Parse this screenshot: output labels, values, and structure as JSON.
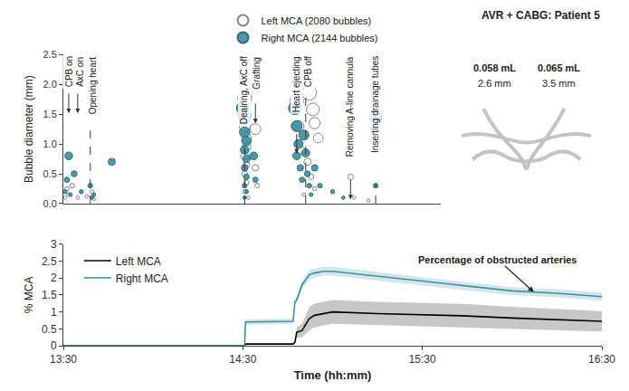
{
  "chart_data": [
    {
      "type": "scatter",
      "title": "AVR + CABG: Patient 5",
      "ylabel": "Bubble diameter (mm)",
      "xlim": [
        13.5,
        15.6
      ],
      "ylim": [
        0,
        2.5
      ],
      "yticks": [
        {
          "value": 0,
          "label": "0.0"
        },
        {
          "value": 0.5,
          "label": "0.5"
        },
        {
          "value": 1,
          "label": "1.0"
        },
        {
          "value": 1.5,
          "label": "1.5"
        },
        {
          "value": 2,
          "label": "2.0"
        },
        {
          "value": 2.5,
          "label": "2.5"
        }
      ],
      "tick_labels": "y",
      "grid": false,
      "legend": "top",
      "marker": "circle",
      "series": [
        {
          "name": "Left MCA (2080 bubbles)",
          "color": "#ffffff",
          "x": [
            13.51,
            13.52,
            13.53,
            13.55,
            13.58,
            13.63,
            13.66,
            13.67,
            14.51,
            14.51,
            14.51,
            14.52,
            14.52,
            14.51,
            14.52,
            14.51,
            14.52,
            14.51,
            14.53,
            14.57,
            14.57,
            14.58,
            14.8,
            14.81,
            14.82,
            14.83,
            14.85,
            14.87,
            14.89,
            14.9,
            14.92,
            14.86,
            14.88,
            14.9,
            14.84,
            15.1,
            15.12,
            15.2
          ],
          "values": [
            0.1,
            0.25,
            0.15,
            0.3,
            0.1,
            0.12,
            0.2,
            0.08,
            1.77,
            1.5,
            1.3,
            1.1,
            0.95,
            0.8,
            0.65,
            0.5,
            0.35,
            0.2,
            0.1,
            1.25,
            0.6,
            0.3,
            1.72,
            1.3,
            0.9,
            1.95,
            2.1,
            1.86,
            1.58,
            1.35,
            1.1,
            0.7,
            0.45,
            0.25,
            0.15,
            0.45,
            0.1,
            0.05
          ]
        },
        {
          "name": "Right MCA (2144 bubbles)",
          "color": "#3a8fa3",
          "x": [
            13.51,
            13.52,
            13.53,
            13.54,
            13.56,
            13.6,
            13.65,
            13.66,
            13.67,
            13.77,
            14.5,
            14.51,
            14.51,
            14.52,
            14.51,
            14.52,
            14.51,
            14.52,
            14.51,
            14.52,
            14.51,
            14.56,
            14.57,
            14.79,
            14.8,
            14.81,
            14.8,
            14.82,
            14.83,
            14.84,
            14.85,
            14.86,
            14.87,
            14.88,
            14.9,
            14.93,
            15.0,
            15.06,
            15.24,
            15.24
          ],
          "values": [
            0.2,
            0.4,
            0.8,
            0.15,
            0.5,
            0.2,
            0.3,
            0.1,
            0.15,
            0.7,
            1.6,
            1.45,
            1.2,
            1.05,
            0.9,
            0.75,
            0.6,
            0.45,
            0.3,
            0.2,
            0.1,
            0.8,
            0.4,
            1.6,
            1.3,
            1.0,
            0.8,
            0.6,
            0.4,
            1.15,
            0.85,
            0.5,
            0.3,
            0.15,
            0.6,
            0.3,
            0.2,
            0.1,
            1.45,
            0.3
          ]
        }
      ],
      "events": [
        {
          "x": 13.53,
          "label": "CPB on",
          "line_style": "arrow"
        },
        {
          "x": 13.58,
          "label": "AxC on",
          "line_style": "arrow"
        },
        {
          "x": 13.65,
          "label": "Opening heart",
          "line_style": "dashed"
        },
        {
          "x": 14.51,
          "label": "Deairing, AxC off",
          "line_style": "dashed"
        },
        {
          "x": 14.57,
          "label": "Grafting",
          "line_style": "arrow"
        },
        {
          "x": 14.8,
          "label": "Heart ejecting",
          "line_style": "arrow"
        },
        {
          "x": 14.85,
          "label": "CPB off",
          "line_style": "dashed"
        },
        {
          "x": 15.1,
          "label": "Removing A-line cannula",
          "line_style": "arrow"
        },
        {
          "x": 15.24,
          "label": "Inserting drainage tubes",
          "line_style": "dashed"
        }
      ],
      "inset_labels": [
        "0.058 mL",
        "2.6 mm",
        "0.065 mL",
        "3.5 mm"
      ]
    },
    {
      "type": "line",
      "xlabel": "Time (hh:mm)",
      "ylabel": "% MCA",
      "xlim": [
        13.5,
        16.5
      ],
      "xticks": [
        {
          "value": 13.5,
          "label": "13:30"
        },
        {
          "value": 14.5,
          "label": "14:30"
        },
        {
          "value": 15.5,
          "label": "15:30"
        },
        {
          "value": 16.5,
          "label": "16:30"
        }
      ],
      "ylim": [
        0,
        3
      ],
      "yticks": [
        0,
        0.5,
        1,
        1.5,
        2,
        2.5,
        3
      ],
      "grid": false,
      "legend": "upper left",
      "x": [
        13.5,
        14.51,
        14.515,
        14.78,
        14.79,
        14.8,
        14.83,
        14.87,
        14.9,
        14.95,
        15.0,
        15.25,
        15.5,
        15.75,
        16.0,
        16.25,
        16.5
      ],
      "series": [
        {
          "name": "Left MCA",
          "color": "#000000",
          "line_style": "solid",
          "values": [
            0,
            0,
            0.05,
            0.05,
            0.1,
            0.4,
            0.45,
            0.8,
            0.9,
            0.95,
            1.0,
            0.95,
            0.92,
            0.88,
            0.82,
            0.77,
            0.72
          ],
          "lower": [
            0,
            0,
            0.03,
            0.03,
            0.06,
            0.25,
            0.25,
            0.45,
            0.55,
            0.6,
            0.65,
            0.6,
            0.57,
            0.53,
            0.5,
            0.46,
            0.42
          ],
          "upper": [
            0,
            0,
            0.07,
            0.07,
            0.14,
            0.55,
            0.65,
            1.15,
            1.25,
            1.3,
            1.35,
            1.3,
            1.27,
            1.23,
            1.15,
            1.08,
            1.02
          ]
        },
        {
          "name": "Right MCA",
          "color": "#3a8fa3",
          "line_style": "solid",
          "values": [
            0,
            0,
            0.7,
            0.72,
            1.3,
            1.35,
            1.8,
            2.1,
            2.15,
            2.2,
            2.2,
            2.05,
            1.9,
            1.75,
            1.62,
            1.55,
            1.45
          ],
          "lower": [
            0,
            0,
            0.62,
            0.64,
            1.2,
            1.25,
            1.68,
            1.97,
            2.02,
            2.07,
            2.07,
            1.93,
            1.78,
            1.63,
            1.5,
            1.43,
            1.33
          ],
          "upper": [
            0,
            0,
            0.78,
            0.8,
            1.4,
            1.45,
            1.92,
            2.23,
            2.28,
            2.33,
            2.33,
            2.17,
            2.02,
            1.87,
            1.74,
            1.67,
            1.57
          ]
        }
      ],
      "annotations": [
        {
          "text": "Percentage of obstructed arteries",
          "x": 16.12,
          "y": 1.59
        }
      ]
    }
  ]
}
